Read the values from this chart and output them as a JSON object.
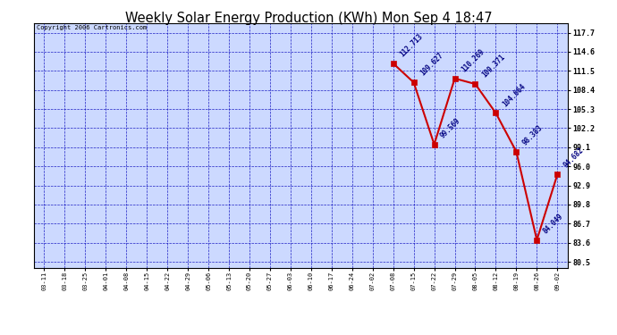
{
  "title": "Weekly Solar Energy Production (KWh) Mon Sep 4 18:47",
  "copyright": "Copyright 2006 Cartronics.com",
  "x_labels": [
    "03-11",
    "03-18",
    "03-25",
    "04-01",
    "04-08",
    "04-15",
    "04-22",
    "04-29",
    "05-06",
    "05-13",
    "05-20",
    "05-27",
    "06-03",
    "06-10",
    "06-17",
    "06-24",
    "07-02",
    "07-08",
    "07-15",
    "07-22",
    "07-29",
    "08-05",
    "08-12",
    "08-19",
    "08-26",
    "09-02"
  ],
  "data_x_indices": [
    17,
    18,
    19,
    20,
    21,
    22,
    23,
    24,
    25
  ],
  "data_y": [
    112.713,
    109.627,
    99.569,
    110.269,
    109.371,
    104.664,
    98.383,
    84.049,
    94.682
  ],
  "data_labels": [
    "112.713",
    "109.627",
    "99.569",
    "110.269",
    "109.371",
    "104.664",
    "98.383",
    "84.049",
    "94.682"
  ],
  "y_ticks": [
    80.5,
    83.6,
    86.7,
    89.8,
    92.9,
    96.0,
    99.1,
    102.2,
    105.3,
    108.4,
    111.5,
    114.6,
    117.7
  ],
  "y_min": 79.5,
  "y_max": 119.2,
  "line_color": "#cc0000",
  "marker_color": "#cc0000",
  "bg_color": "#ffffff",
  "plot_bg_color": "#ccd9ff",
  "grid_color": "#0000bb",
  "title_color": "#000000",
  "copyright_color": "#000000",
  "label_color": "#000080"
}
